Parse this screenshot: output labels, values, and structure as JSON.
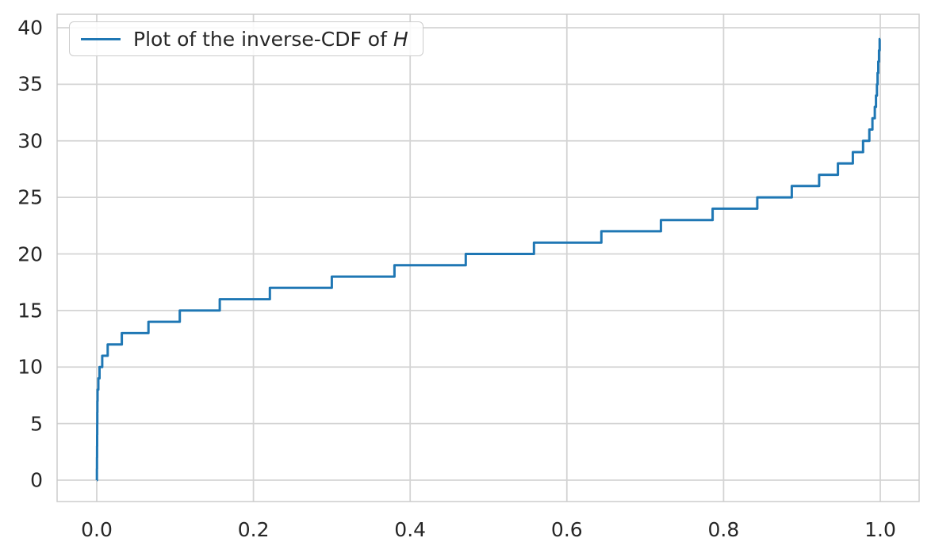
{
  "chart_data": {
    "type": "line",
    "subtype": "step-function-inverse-cdf",
    "title": "",
    "xlabel": "",
    "ylabel": "",
    "grid": true,
    "legend": {
      "position": "upper-left",
      "label_prefix": "Plot of the inverse-CDF of ",
      "label_var": "H",
      "full_label": "Plot of the inverse-CDF of H"
    },
    "x_axis": {
      "range": [
        -0.0506,
        1.0506
      ],
      "ticks": [
        0.0,
        0.2,
        0.4,
        0.6,
        0.8,
        1.0
      ],
      "tick_labels": [
        "0.0",
        "0.2",
        "0.4",
        "0.6",
        "0.8",
        "1.0"
      ]
    },
    "y_axis": {
      "range": [
        -1.95,
        41.2
      ],
      "ticks": [
        0,
        5,
        10,
        15,
        20,
        25,
        30,
        35,
        40
      ],
      "tick_labels": [
        "0",
        "5",
        "10",
        "15",
        "20",
        "25",
        "30",
        "35",
        "40"
      ]
    },
    "colors": {
      "line": "#1f77b4",
      "grid": "#d4d4d4",
      "spine": "#c9c9c9",
      "text": "#262626",
      "background": "#ffffff"
    },
    "series": [
      {
        "name": "Plot of the inverse-CDF of H",
        "description": "Quantile (inverse-CDF) step function: each pair is [cumulative probability p at which the value begins, value]",
        "step_points": [
          [
            0.0,
            0
          ],
          [
            0.0002,
            1
          ],
          [
            0.0003,
            2
          ],
          [
            0.0004,
            3
          ],
          [
            0.0005,
            4
          ],
          [
            0.0006,
            5
          ],
          [
            0.0007,
            6
          ],
          [
            0.0008,
            7
          ],
          [
            0.001,
            8
          ],
          [
            0.002,
            9
          ],
          [
            0.0035,
            10
          ],
          [
            0.007,
            11
          ],
          [
            0.014,
            12
          ],
          [
            0.032,
            13
          ],
          [
            0.066,
            14
          ],
          [
            0.106,
            15
          ],
          [
            0.157,
            16
          ],
          [
            0.221,
            17
          ],
          [
            0.3,
            18
          ],
          [
            0.38,
            19
          ],
          [
            0.471,
            20
          ],
          [
            0.558,
            21
          ],
          [
            0.644,
            22
          ],
          [
            0.72,
            23
          ],
          [
            0.786,
            24
          ],
          [
            0.843,
            25
          ],
          [
            0.887,
            26
          ],
          [
            0.922,
            27
          ],
          [
            0.946,
            28
          ],
          [
            0.965,
            29
          ],
          [
            0.978,
            30
          ],
          [
            0.986,
            31
          ],
          [
            0.99,
            32
          ],
          [
            0.993,
            33
          ],
          [
            0.9945,
            34
          ],
          [
            0.9957,
            35
          ],
          [
            0.9966,
            36
          ],
          [
            0.9975,
            37
          ],
          [
            0.9984,
            38
          ],
          [
            0.9992,
            39
          ]
        ],
        "ends_at": [
          1.0,
          39
        ]
      }
    ]
  }
}
